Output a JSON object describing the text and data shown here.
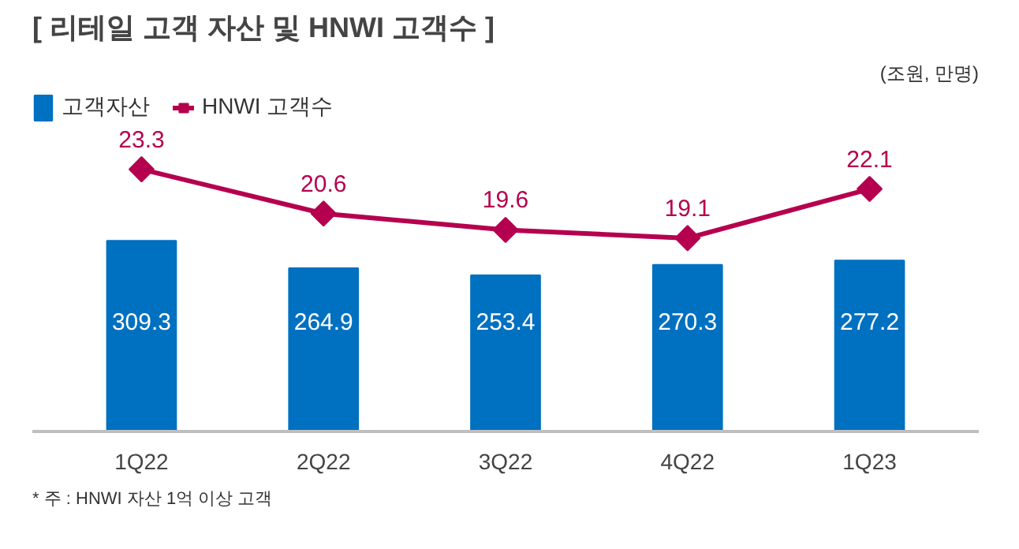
{
  "chart_data": {
    "type": "bar",
    "title": "[ 리테일 고객 자산 및 HNWI 고객수 ]",
    "categories": [
      "1Q22",
      "2Q22",
      "3Q22",
      "4Q22",
      "1Q23"
    ],
    "series": [
      {
        "name": "고객자산",
        "color": "#0070c0",
        "values": [
          309.3,
          264.9,
          253.4,
          270.3,
          277.2
        ]
      },
      {
        "name": "HNWI 고객수",
        "type": "line",
        "axis": "y2",
        "color": "#b5004f",
        "values": [
          23.3,
          20.6,
          19.6,
          19.1,
          22.1
        ]
      }
    ],
    "annotations": [
      "(조원, 만명)",
      "* 주 : HNWI 자산 1억 이상 고객"
    ],
    "ylim": [
      0,
      550
    ],
    "y2lim": [
      7.3,
      28
    ],
    "marker": "diamond",
    "line_style": "solid",
    "data_labels": true,
    "legend": "top left",
    "grid": false
  }
}
